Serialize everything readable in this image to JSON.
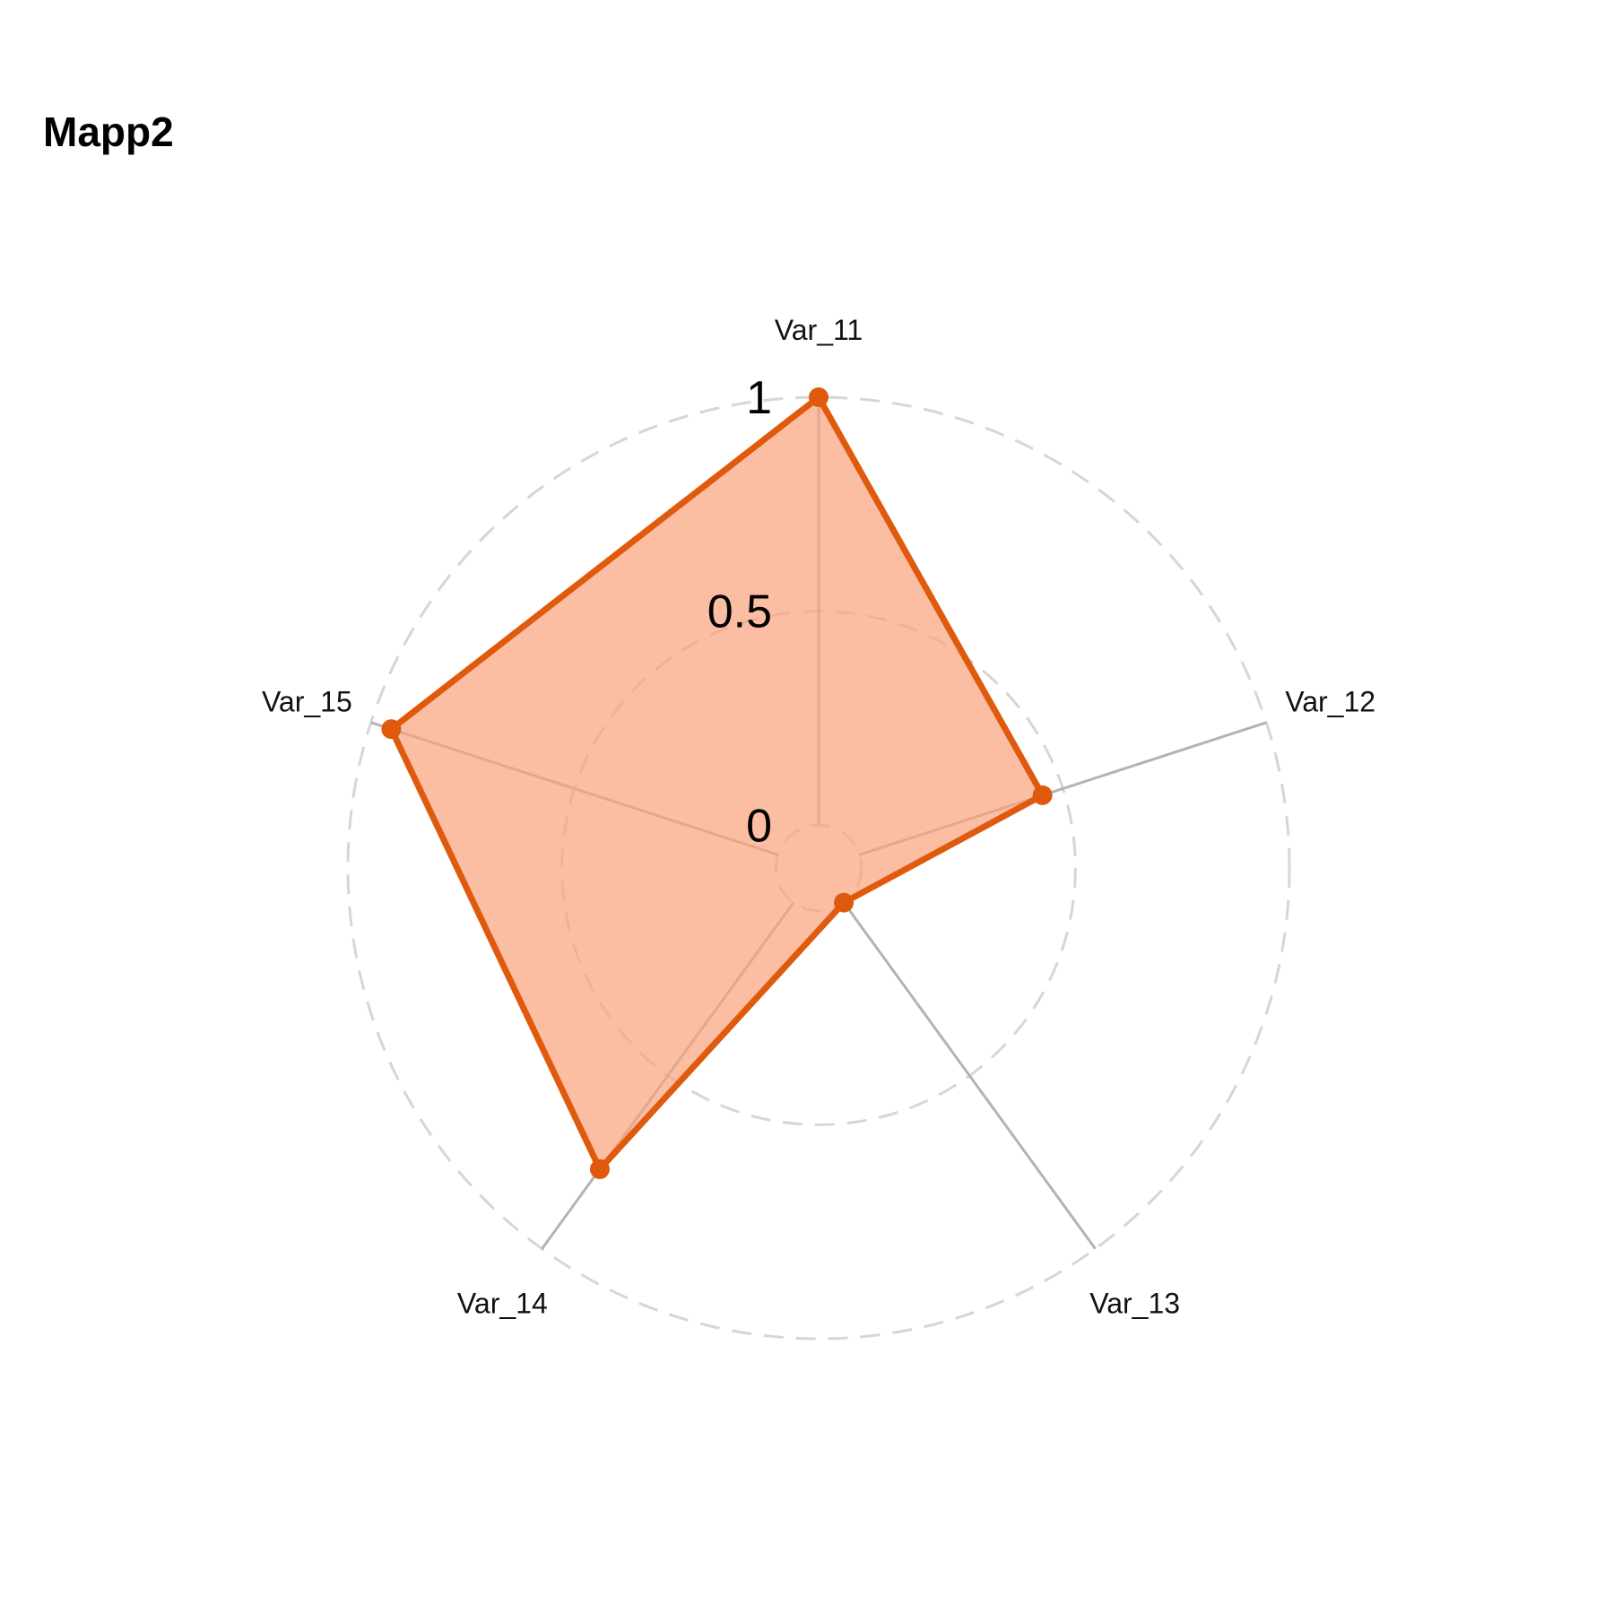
{
  "title": "Mapp2",
  "chart_data": {
    "type": "radar",
    "title": "Mapp2",
    "axes": [
      "Var_11",
      "Var_12",
      "Var_13",
      "Var_14",
      "Var_15"
    ],
    "ring_labels": [
      "0",
      "0.5",
      "1"
    ],
    "rlim": [
      -0.1,
      1.0
    ],
    "grid": true,
    "series": [
      {
        "values": [
          1.0,
          0.45,
          0.0,
          0.77,
          0.95
        ],
        "line_color": "#E05A0E",
        "fill_color": "#FBA27A"
      }
    ]
  }
}
